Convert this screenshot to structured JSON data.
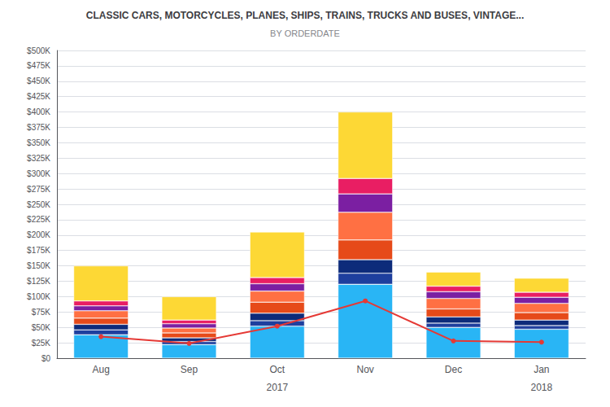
{
  "chart_data": {
    "type": "bar",
    "title": "CLASSIC CARS, MOTORCYCLES, PLANES, SHIPS, TRAINS, TRUCKS AND BUSES, VINTAGE...",
    "subtitle": "BY ORDERDATE",
    "categories": [
      "Aug",
      "Sep",
      "Oct",
      "Nov",
      "Dec",
      "Jan"
    ],
    "stacked": true,
    "grid": true,
    "series": [
      {
        "type": "bar",
        "color": "#29b5f5",
        "values": [
          38000,
          22000,
          52000,
          120000,
          50000,
          47000
        ]
      },
      {
        "type": "bar",
        "color": "#1e3f9e",
        "values": [
          8000,
          5000,
          9000,
          18000,
          7000,
          6000
        ]
      },
      {
        "type": "bar",
        "color": "#0d2b7a",
        "values": [
          9000,
          6000,
          12000,
          22000,
          10000,
          9000
        ]
      },
      {
        "type": "bar",
        "color": "#e64a19",
        "values": [
          10000,
          8000,
          18000,
          32000,
          13000,
          12000
        ]
      },
      {
        "type": "bar",
        "color": "#ff7043",
        "values": [
          12000,
          8000,
          18000,
          45000,
          17000,
          15000
        ]
      },
      {
        "type": "bar",
        "color": "#7b1fa2",
        "values": [
          8000,
          7000,
          12000,
          30000,
          11000,
          10000
        ]
      },
      {
        "type": "bar",
        "color": "#e91e63",
        "values": [
          8000,
          6000,
          10000,
          25000,
          9000,
          8000
        ]
      },
      {
        "type": "bar",
        "color": "#fdd835",
        "values": [
          57000,
          38000,
          74000,
          108000,
          23000,
          23000
        ]
      },
      {
        "type": "line",
        "color": "#e53935",
        "marker": "circle",
        "values": [
          35000,
          24000,
          52000,
          93000,
          28000,
          26000
        ]
      }
    ],
    "ylim": [
      0,
      500000
    ],
    "yticks": [
      {
        "value": 0,
        "label": "$0"
      },
      {
        "value": 25000,
        "label": "$25K"
      },
      {
        "value": 50000,
        "label": "$50K"
      },
      {
        "value": 75000,
        "label": "$75K"
      },
      {
        "value": 100000,
        "label": "$100K"
      },
      {
        "value": 125000,
        "label": "$125K"
      },
      {
        "value": 150000,
        "label": "$150K"
      },
      {
        "value": 175000,
        "label": "$175K"
      },
      {
        "value": 200000,
        "label": "$200K"
      },
      {
        "value": 225000,
        "label": "$225K"
      },
      {
        "value": 250000,
        "label": "$250K"
      },
      {
        "value": 275000,
        "label": "$275K"
      },
      {
        "value": 300000,
        "label": "$300K"
      },
      {
        "value": 325000,
        "label": "$325K"
      },
      {
        "value": 350000,
        "label": "$350K"
      },
      {
        "value": 375000,
        "label": "$375K"
      },
      {
        "value": 400000,
        "label": "$400K"
      },
      {
        "value": 425000,
        "label": "$425K"
      },
      {
        "value": 450000,
        "label": "$450K"
      },
      {
        "value": 475000,
        "label": "$475K"
      },
      {
        "value": 500000,
        "label": "$500K"
      }
    ],
    "annotations": [
      {
        "text": "2017",
        "x": "Oct"
      },
      {
        "text": "2018",
        "x": "Jan"
      }
    ]
  }
}
